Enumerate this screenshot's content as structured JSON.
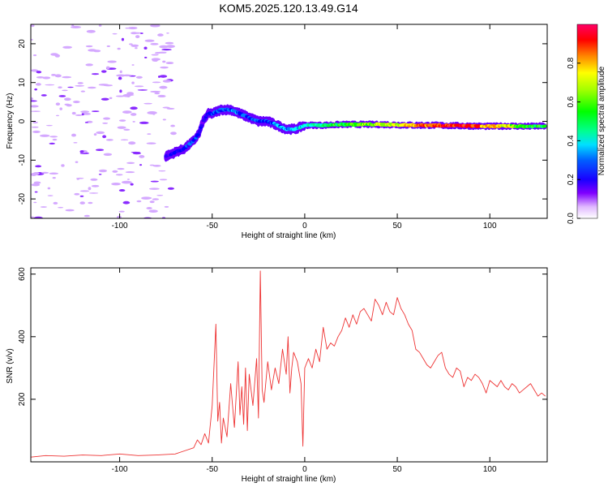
{
  "title": "KOM5.2025.120.13.49.G14",
  "chart_data": [
    {
      "type": "heatmap",
      "title": "KOM5.2025.120.13.49.G14",
      "xlabel": "Height of straight line (km)",
      "ylabel": "Frequency (Hz)",
      "xlim": [
        -148,
        131
      ],
      "ylim": [
        -25,
        25
      ],
      "x_ticks": [
        -100,
        -50,
        0,
        50,
        100
      ],
      "y_ticks": [
        -20,
        -10,
        0,
        10,
        20
      ],
      "grid": false,
      "colorbar": {
        "label": "Normalized spectral amplitude",
        "range": [
          0,
          1
        ],
        "ticks": [
          0.0,
          0.2,
          0.4,
          0.6,
          0.8
        ],
        "tick_labels": [
          "0.0",
          "0.2",
          "0.4",
          "0.6",
          "0.8"
        ],
        "colormap": [
          "#ffffff",
          "#d9b3ff",
          "#8000ff",
          "#2b00ff",
          "#0000ff",
          "#0080ff",
          "#00ffff",
          "#00ff80",
          "#00ff00",
          "#80ff00",
          "#ffff00",
          "#ff8000",
          "#ff0000",
          "#ff0066"
        ]
      },
      "ridge": {
        "description": "Doppler frequency trace vs height",
        "x": [
          -75,
          -70,
          -65,
          -60,
          -57,
          -55,
          -52,
          -50,
          -45,
          -40,
          -35,
          -30,
          -25,
          -20,
          -15,
          -10,
          -5,
          0,
          10,
          20,
          30,
          40,
          50,
          60,
          70,
          80,
          90,
          100,
          110,
          120,
          130
        ],
        "frequency": [
          -9,
          -8,
          -7,
          -5,
          -3,
          0,
          2,
          2,
          3,
          3,
          2,
          1,
          0,
          0,
          -1,
          -2,
          -2,
          -1,
          -1,
          -0.8,
          -0.8,
          -0.8,
          -0.9,
          -1,
          -1,
          -1.1,
          -1.2,
          -1.3,
          -1.2,
          -1.3,
          -1.2
        ],
        "amplitude": [
          0.15,
          0.2,
          0.25,
          0.3,
          0.25,
          0.2,
          0.2,
          0.25,
          0.3,
          0.35,
          0.3,
          0.3,
          0.3,
          0.25,
          0.35,
          0.35,
          0.4,
          0.45,
          0.55,
          0.6,
          0.65,
          0.7,
          0.75,
          0.85,
          0.9,
          0.95,
          0.9,
          0.8,
          0.75,
          0.6,
          0.55
        ]
      }
    },
    {
      "type": "line",
      "xlabel": "Height of straight line (km)",
      "ylabel": "SNR (v/v)",
      "xlim": [
        -148,
        131
      ],
      "ylim": [
        0,
        620
      ],
      "x_ticks": [
        -100,
        -50,
        0,
        50,
        100
      ],
      "y_ticks": [
        200,
        400,
        600
      ],
      "grid": false,
      "color": "#ee3333",
      "series": [
        {
          "x": [
            -148,
            -140,
            -130,
            -120,
            -110,
            -100,
            -90,
            -80,
            -70,
            -65,
            -60,
            -58,
            -56,
            -54,
            -52,
            -50,
            -48,
            -47,
            -46,
            -45,
            -44,
            -42,
            -40,
            -38,
            -36,
            -35,
            -34,
            -33,
            -32,
            -31,
            -30,
            -28,
            -26,
            -25,
            -24,
            -23,
            -22,
            -20,
            -18,
            -16,
            -14,
            -12,
            -10,
            -9,
            -8,
            -7,
            -6,
            -4,
            -2,
            -1,
            0,
            2,
            4,
            6,
            8,
            10,
            12,
            14,
            16,
            18,
            20,
            22,
            24,
            26,
            28,
            30,
            32,
            34,
            36,
            38,
            40,
            42,
            44,
            46,
            48,
            50,
            52,
            54,
            56,
            58,
            60,
            62,
            64,
            66,
            68,
            70,
            72,
            74,
            76,
            78,
            80,
            82,
            84,
            86,
            88,
            90,
            92,
            94,
            96,
            98,
            100,
            102,
            104,
            106,
            108,
            110,
            112,
            114,
            116,
            118,
            120,
            122,
            124,
            126,
            128,
            130
          ],
          "values": [
            15,
            20,
            18,
            22,
            20,
            25,
            20,
            22,
            25,
            35,
            45,
            70,
            55,
            90,
            60,
            180,
            440,
            130,
            190,
            60,
            140,
            80,
            250,
            110,
            320,
            150,
            240,
            120,
            300,
            100,
            280,
            180,
            330,
            140,
            610,
            230,
            190,
            320,
            230,
            300,
            250,
            360,
            280,
            400,
            220,
            300,
            350,
            320,
            250,
            50,
            300,
            330,
            300,
            360,
            320,
            430,
            360,
            380,
            370,
            400,
            420,
            460,
            430,
            470,
            440,
            480,
            490,
            470,
            450,
            520,
            500,
            470,
            510,
            480,
            470,
            525,
            490,
            470,
            440,
            420,
            360,
            350,
            330,
            310,
            300,
            320,
            340,
            350,
            300,
            280,
            270,
            300,
            290,
            240,
            270,
            260,
            280,
            270,
            250,
            220,
            260,
            250,
            240,
            260,
            240,
            230,
            250,
            240,
            220,
            230,
            240,
            250,
            230,
            210,
            220,
            210
          ]
        }
      ]
    }
  ]
}
